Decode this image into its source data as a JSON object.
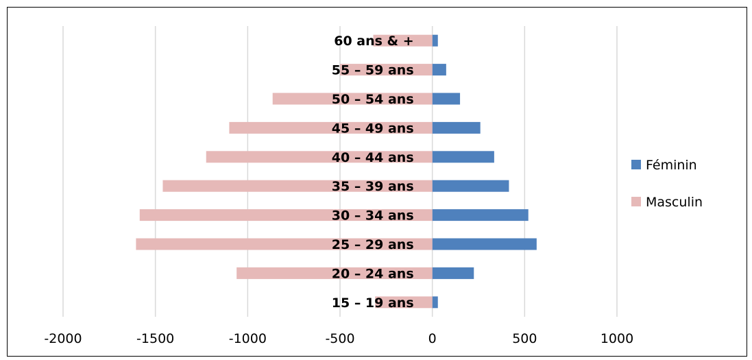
{
  "chart_data": {
    "type": "bar",
    "orientation": "horizontal",
    "categories": [
      "15 – 19 ans",
      "20 – 24 ans",
      "25 – 29 ans",
      "30 – 34 ans",
      "35 – 39 ans",
      "40 – 44 ans",
      "45 – 49 ans",
      "50 – 54 ans",
      "55 – 59 ans",
      "60 ans & +"
    ],
    "series": [
      {
        "name": "Féminin",
        "values": [
          30,
          225,
          565,
          520,
          415,
          335,
          260,
          150,
          75,
          30
        ]
      },
      {
        "name": "Masculin",
        "values": [
          -310,
          -1060,
          -1605,
          -1585,
          -1460,
          -1225,
          -1100,
          -865,
          -500,
          -320
        ]
      }
    ],
    "xlim": [
      -2000,
      1000
    ],
    "xticks": [
      "-2000",
      "-1500",
      "-1000",
      "-500",
      "0",
      "500",
      "1000"
    ],
    "xtick_values": [
      -2000,
      -1500,
      -1000,
      -500,
      0,
      500,
      1000
    ],
    "grid": true,
    "legend_position": "right",
    "colors": {
      "Féminin": "#4f81bd",
      "Masculin": "#e6b9b8",
      "grid": "#d9d9d9"
    }
  }
}
